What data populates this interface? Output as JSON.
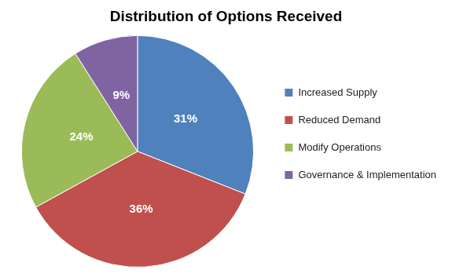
{
  "chart_data": {
    "type": "pie",
    "title": "Distribution of Options Received",
    "categories": [
      "Increased Supply",
      "Reduced Demand",
      "Modify Operations",
      "Governance & Implementation"
    ],
    "values": [
      31,
      36,
      24,
      9
    ],
    "value_labels": [
      "31%",
      "36%",
      "24%",
      "9%"
    ],
    "colors": [
      "#4f81bd",
      "#c0504d",
      "#9bbb59",
      "#8064a2"
    ],
    "legend": "right",
    "data_labels": true
  }
}
